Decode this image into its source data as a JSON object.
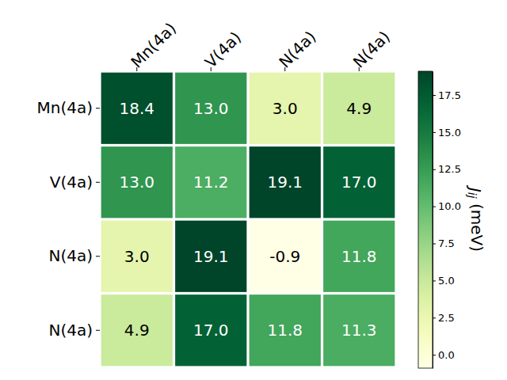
{
  "chart_data": {
    "type": "heatmap",
    "x_categories": [
      "Mn(4a)",
      "V(4a)",
      "N(4a)",
      "N(4a)"
    ],
    "y_categories": [
      "Mn(4a)",
      "V(4a)",
      "N(4a)",
      "N(4a)"
    ],
    "values": [
      [
        18.4,
        13.0,
        3.0,
        4.9
      ],
      [
        13.0,
        11.2,
        19.1,
        17.0
      ],
      [
        3.0,
        19.1,
        -0.9,
        11.8
      ],
      [
        4.9,
        17.0,
        11.8,
        11.3
      ]
    ],
    "value_labels": [
      [
        "18.4",
        "13.0",
        "3.0",
        "4.9"
      ],
      [
        "13.0",
        "11.2",
        "19.1",
        "17.0"
      ],
      [
        "3.0",
        "19.1",
        "-0.9",
        "11.8"
      ],
      [
        "4.9",
        "17.0",
        "11.8",
        "11.3"
      ]
    ],
    "data_labels": true,
    "colorbar": {
      "label": "Jij (meV)",
      "range": [
        -0.9,
        19.1
      ],
      "ticks": [
        {
          "value": 0,
          "label": "0.0"
        },
        {
          "value": 2.5,
          "label": "2.5"
        },
        {
          "value": 5,
          "label": "5.0"
        },
        {
          "value": 7.5,
          "label": "7.5"
        },
        {
          "value": 10,
          "label": "10.0"
        },
        {
          "value": 12.5,
          "label": "12.5"
        },
        {
          "value": 15,
          "label": "15.0"
        },
        {
          "value": 17.5,
          "label": "17.5"
        }
      ]
    }
  }
}
